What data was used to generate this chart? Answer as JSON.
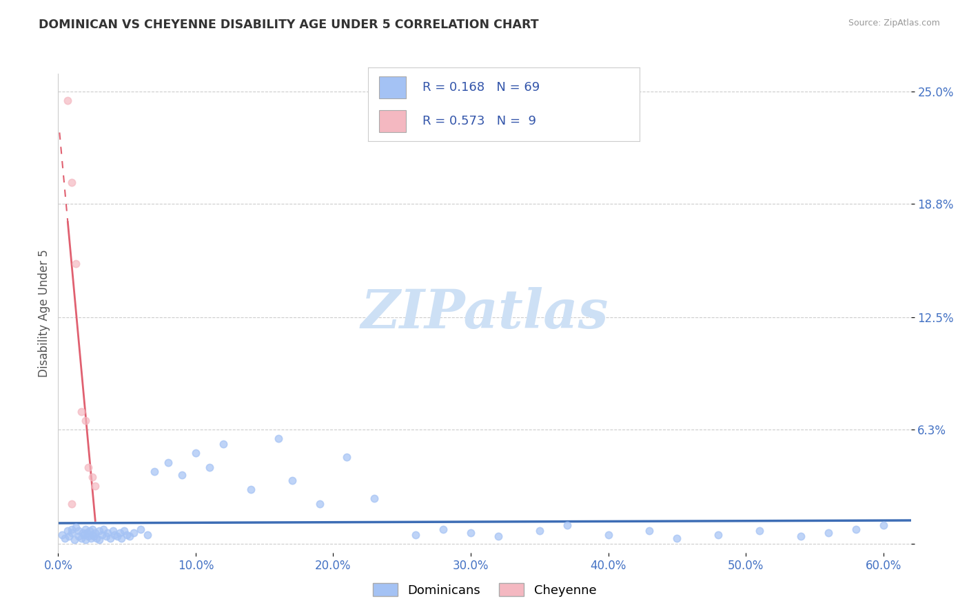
{
  "title": "DOMINICAN VS CHEYENNE DISABILITY AGE UNDER 5 CORRELATION CHART",
  "source_text": "Source: ZipAtlas.com",
  "ylabel": "Disability Age Under 5",
  "xlim": [
    0.0,
    0.62
  ],
  "ylim": [
    -0.005,
    0.26
  ],
  "yticks": [
    0.0,
    0.063,
    0.125,
    0.188,
    0.25
  ],
  "ytick_labels": [
    "",
    "6.3%",
    "12.5%",
    "18.8%",
    "25.0%"
  ],
  "xticks": [
    0.0,
    0.1,
    0.2,
    0.3,
    0.4,
    0.5,
    0.6
  ],
  "xtick_labels": [
    "0.0%",
    "10.0%",
    "20.0%",
    "30.0%",
    "40.0%",
    "50.0%",
    "60.0%"
  ],
  "blue_color": "#a4c2f4",
  "pink_color": "#f4b8c1",
  "blue_line_color": "#3d6db5",
  "pink_line_color": "#e06070",
  "R_blue": 0.168,
  "N_blue": 69,
  "R_pink": 0.573,
  "N_pink": 9,
  "blue_scatter_x": [
    0.003,
    0.005,
    0.007,
    0.008,
    0.01,
    0.01,
    0.012,
    0.013,
    0.015,
    0.015,
    0.017,
    0.018,
    0.019,
    0.02,
    0.02,
    0.021,
    0.022,
    0.023,
    0.024,
    0.025,
    0.025,
    0.026,
    0.027,
    0.028,
    0.03,
    0.03,
    0.032,
    0.033,
    0.035,
    0.036,
    0.038,
    0.04,
    0.041,
    0.043,
    0.045,
    0.046,
    0.048,
    0.05,
    0.052,
    0.055,
    0.06,
    0.065,
    0.07,
    0.08,
    0.09,
    0.1,
    0.11,
    0.12,
    0.14,
    0.16,
    0.17,
    0.19,
    0.21,
    0.23,
    0.26,
    0.28,
    0.3,
    0.32,
    0.35,
    0.37,
    0.4,
    0.43,
    0.45,
    0.48,
    0.51,
    0.54,
    0.56,
    0.58,
    0.6
  ],
  "blue_scatter_y": [
    0.005,
    0.003,
    0.007,
    0.004,
    0.006,
    0.008,
    0.002,
    0.009,
    0.004,
    0.007,
    0.003,
    0.006,
    0.005,
    0.008,
    0.002,
    0.006,
    0.004,
    0.007,
    0.003,
    0.005,
    0.008,
    0.004,
    0.006,
    0.003,
    0.007,
    0.002,
    0.005,
    0.008,
    0.004,
    0.006,
    0.003,
    0.007,
    0.005,
    0.004,
    0.006,
    0.003,
    0.007,
    0.005,
    0.004,
    0.006,
    0.008,
    0.005,
    0.04,
    0.045,
    0.038,
    0.05,
    0.042,
    0.055,
    0.03,
    0.058,
    0.035,
    0.022,
    0.048,
    0.025,
    0.005,
    0.008,
    0.006,
    0.004,
    0.007,
    0.01,
    0.005,
    0.007,
    0.003,
    0.005,
    0.007,
    0.004,
    0.006,
    0.008,
    0.01
  ],
  "pink_scatter_x": [
    0.007,
    0.01,
    0.013,
    0.017,
    0.02,
    0.022,
    0.025,
    0.027,
    0.01
  ],
  "pink_scatter_y": [
    0.245,
    0.2,
    0.155,
    0.073,
    0.068,
    0.042,
    0.037,
    0.032,
    0.022
  ],
  "watermark_text": "ZIPatlas",
  "watermark_color": "#cde0f5",
  "background_color": "#ffffff",
  "grid_color": "#cccccc",
  "legend_label_blue": "Dominicans",
  "legend_label_pink": "Cheyenne"
}
